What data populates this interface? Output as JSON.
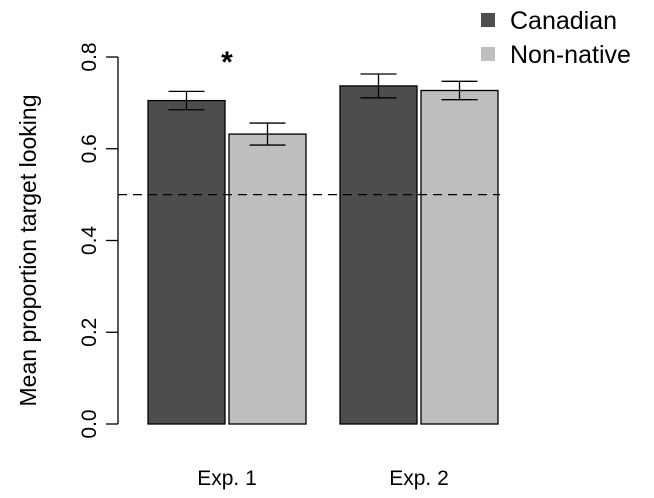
{
  "chart_data": {
    "type": "bar",
    "categories": [
      "Exp. 1",
      "Exp. 2"
    ],
    "series": [
      {
        "name": "Canadian",
        "values": [
          0.705,
          0.737
        ],
        "errors": [
          0.02,
          0.026
        ],
        "color": "#4d4d4d"
      },
      {
        "name": "Non-native",
        "values": [
          0.632,
          0.727
        ],
        "errors": [
          0.024,
          0.02
        ],
        "color": "#bebebe"
      }
    ],
    "ylabel": "Mean proportion  target looking",
    "ylim": [
      0,
      0.8
    ],
    "yticks": [
      "0.0",
      "0.2",
      "0.4",
      "0.6",
      "0.8"
    ],
    "reference_line": {
      "value": 0.5,
      "style": "dashed"
    },
    "annotations": [
      {
        "text": "*",
        "category": "Exp. 1"
      }
    ],
    "legend_position": "top-right",
    "grid": false
  }
}
